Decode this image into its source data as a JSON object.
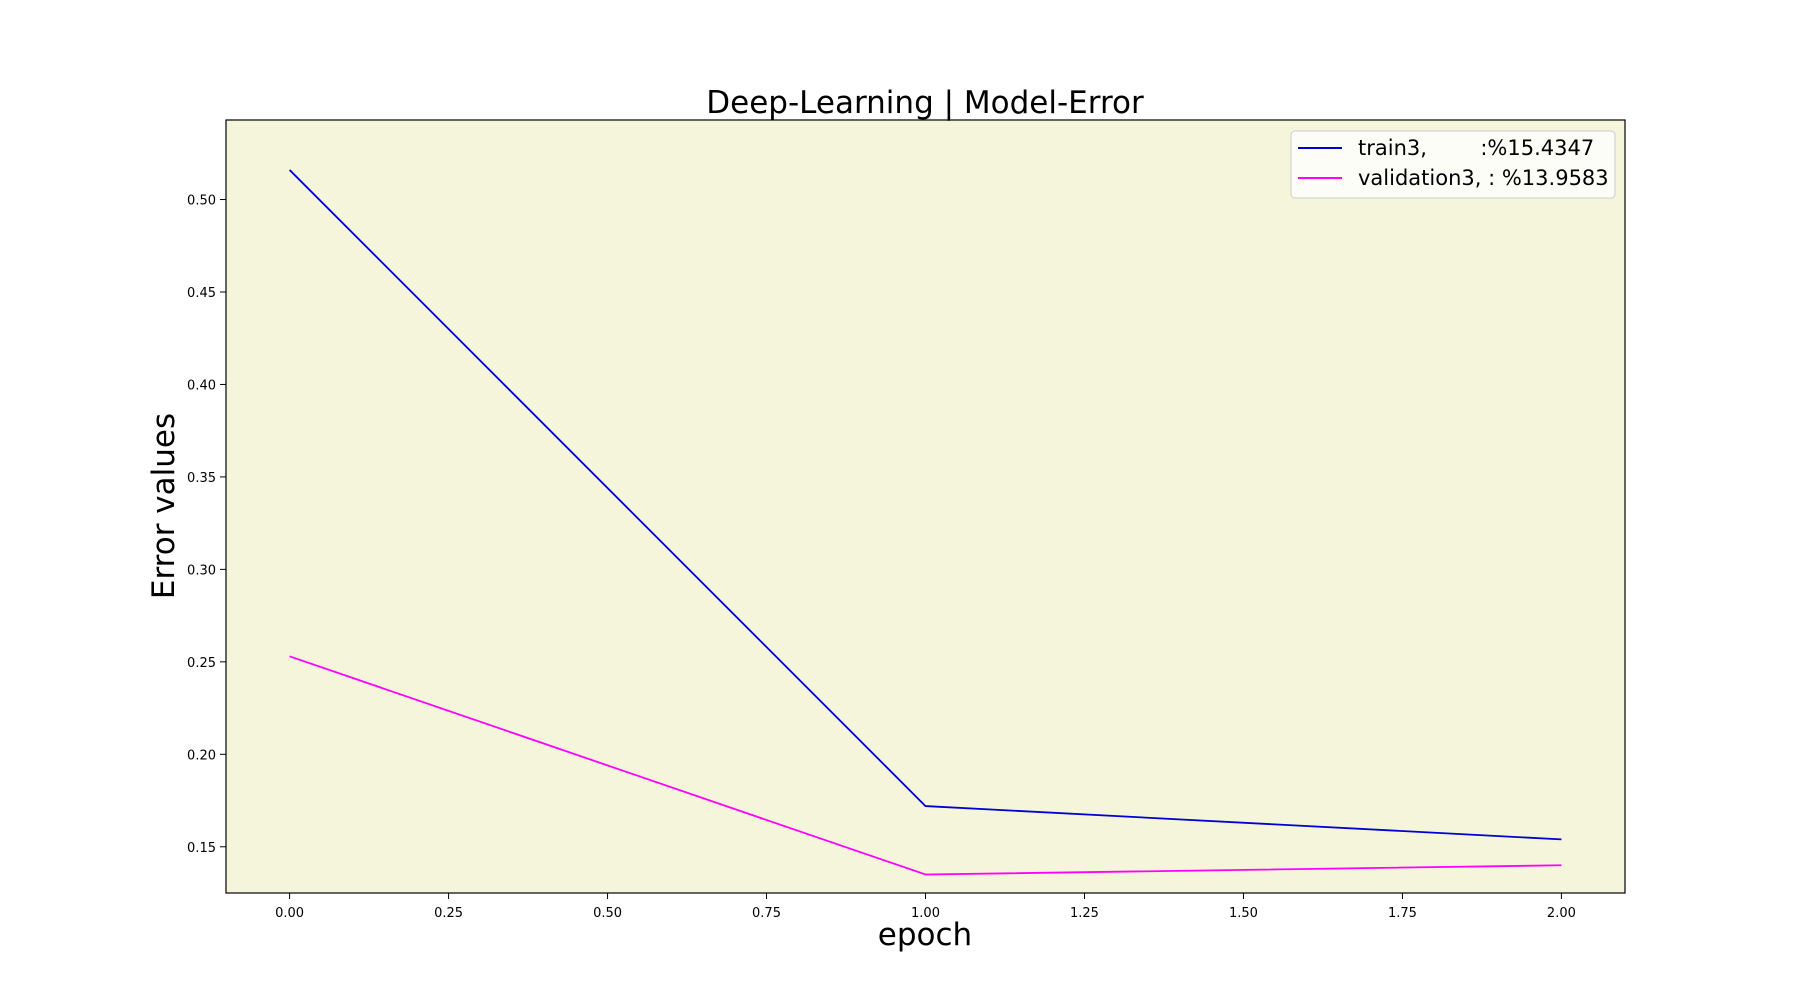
{
  "chart_data": {
    "type": "line",
    "title": "Deep-Learning | Model-Error",
    "xlabel": "epoch",
    "ylabel": "Error values",
    "xlim": [
      -0.1,
      2.1
    ],
    "ylim": [
      0.125,
      0.543
    ],
    "xticks": [
      0.0,
      0.25,
      0.5,
      0.75,
      1.0,
      1.25,
      1.5,
      1.75,
      2.0
    ],
    "xtick_labels": [
      "0.00",
      "0.25",
      "0.50",
      "0.75",
      "1.00",
      "1.25",
      "1.50",
      "1.75",
      "2.00"
    ],
    "yticks": [
      0.15,
      0.2,
      0.25,
      0.3,
      0.35,
      0.4,
      0.45,
      0.5
    ],
    "ytick_labels": [
      "0.15",
      "0.20",
      "0.25",
      "0.30",
      "0.35",
      "0.40",
      "0.45",
      "0.50"
    ],
    "grid": false,
    "legend_position": "top-right",
    "plot_background": "#f5f5dc",
    "x": [
      0,
      1,
      2
    ],
    "series": [
      {
        "name": "train3,        :%15.4347",
        "color": "#0000d4",
        "values": [
          0.516,
          0.172,
          0.154
        ]
      },
      {
        "name": "validation3, : %13.9583",
        "color": "#ff00ff",
        "values": [
          0.253,
          0.135,
          0.14
        ]
      }
    ]
  }
}
